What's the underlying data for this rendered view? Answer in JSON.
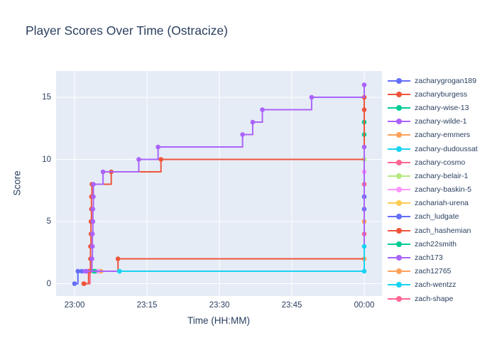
{
  "chart_data": {
    "type": "line",
    "line_shape": "hv",
    "mode": "lines+markers",
    "title": "Player Scores Over Time (Ostracize)",
    "xlabel": "Time (HH:MM)",
    "ylabel": "Score",
    "x_tick_labels": [
      "23:00",
      "23:15",
      "23:30",
      "23:45",
      "00:00"
    ],
    "x_tick_minutes": [
      0,
      15,
      30,
      45,
      60
    ],
    "y_ticks": [
      0,
      5,
      10,
      15
    ],
    "ylim": [
      -1.2,
      17.1
    ],
    "xlim_minutes": [
      -3.8,
      63.6
    ],
    "grid": "on",
    "legend_position": "right",
    "plot_bg_color": "#E5ECF6",
    "grid_color": "#FFFFFF",
    "text_color": "#2A3F5F",
    "series": [
      {
        "name": "zacharygrogan189",
        "color": "#636EFA",
        "final_score": 7,
        "points": [
          [
            0,
            0
          ],
          [
            0.7,
            1
          ],
          [
            60,
            7
          ]
        ]
      },
      {
        "name": "zacharyburgess",
        "color": "#EF553B",
        "final_score": 15,
        "points": [
          [
            1.9,
            0
          ],
          [
            2.9,
            1
          ],
          [
            3.3,
            2
          ],
          [
            3.3,
            3
          ],
          [
            3.4,
            4
          ],
          [
            3.4,
            5
          ],
          [
            3.5,
            6
          ],
          [
            3.5,
            7
          ],
          [
            3.6,
            8
          ],
          [
            7.6,
            9
          ],
          [
            17.9,
            10
          ],
          [
            60,
            15
          ]
        ]
      },
      {
        "name": "zachary-wise-13",
        "color": "#00CC96",
        "final_score": 12,
        "points": [
          [
            4.2,
            1
          ],
          [
            60,
            12
          ]
        ]
      },
      {
        "name": "zachary-wilde-1",
        "color": "#AB63FA",
        "final_score": 11,
        "points": [
          [
            2.5,
            1
          ],
          [
            60,
            11
          ]
        ]
      },
      {
        "name": "zachary-emmers",
        "color": "#FFA15A",
        "final_score": 5,
        "points": [
          [
            4.9,
            1
          ],
          [
            60,
            5
          ]
        ]
      },
      {
        "name": "zachary-dudoussat",
        "color": "#19D3F3",
        "final_score": 3,
        "points": [
          [
            9.3,
            1
          ],
          [
            60,
            3
          ]
        ]
      },
      {
        "name": "zachary-cosmo",
        "color": "#FF6692",
        "final_score": 8,
        "points": [
          [
            3,
            1
          ],
          [
            60,
            8
          ]
        ]
      },
      {
        "name": "zachary-belair-1",
        "color": "#B6E880",
        "final_score": 10,
        "points": [
          [
            4.5,
            1
          ],
          [
            60,
            10
          ]
        ]
      },
      {
        "name": "zachary-baskin-5",
        "color": "#FF97FF",
        "final_score": 9,
        "points": [
          [
            4.8,
            1
          ],
          [
            60,
            9
          ]
        ]
      },
      {
        "name": "zachariah-urena",
        "color": "#FECB52",
        "final_score": 0,
        "points": [
          [
            0,
            0
          ]
        ]
      },
      {
        "name": "zach_ludgate",
        "color": "#636EFA",
        "final_score": 6,
        "points": [
          [
            1.5,
            1
          ],
          [
            60,
            6
          ]
        ]
      },
      {
        "name": "zach_hashemian",
        "color": "#EF553B",
        "final_score": 14,
        "points": [
          [
            3,
            1
          ],
          [
            9,
            2
          ],
          [
            60,
            14
          ]
        ]
      },
      {
        "name": "zach22smith",
        "color": "#00CC96",
        "final_score": 13,
        "points": [
          [
            4,
            1
          ],
          [
            60,
            13
          ]
        ]
      },
      {
        "name": "zach173",
        "color": "#AB63FA",
        "final_score": 16,
        "points": [
          [
            2.2,
            1
          ],
          [
            3.6,
            2
          ],
          [
            3.7,
            3
          ],
          [
            3.7,
            4
          ],
          [
            3.8,
            5
          ],
          [
            3.8,
            6
          ],
          [
            3.9,
            7
          ],
          [
            3.9,
            8
          ],
          [
            5.9,
            9
          ],
          [
            13.3,
            10
          ],
          [
            17.3,
            11
          ],
          [
            34.8,
            12
          ],
          [
            36.9,
            13
          ],
          [
            38.9,
            14
          ],
          [
            49.1,
            15
          ],
          [
            60,
            16
          ]
        ]
      },
      {
        "name": "zach12765",
        "color": "#FFA15A",
        "final_score": 2,
        "points": [
          [
            5.5,
            1
          ],
          [
            60,
            2
          ]
        ]
      },
      {
        "name": "zach-wentzz",
        "color": "#19D3F3",
        "final_score": 1,
        "points": [
          [
            9.3,
            1
          ],
          [
            60,
            1
          ]
        ]
      },
      {
        "name": "zach-shape",
        "color": "#FF6692",
        "final_score": 4,
        "points": [
          [
            2,
            0
          ],
          [
            3.2,
            1
          ],
          [
            60,
            4
          ]
        ]
      }
    ],
    "draw_order": [
      "zachariah-urena",
      "zacharygrogan189",
      "zach_ludgate",
      "zachary-emmers",
      "zach12765",
      "zachary-belair-1",
      "zachary-baskin-5",
      "zachary-cosmo",
      "zach-shape",
      "zachary-wise-13",
      "zach22smith",
      "zach_hashemian",
      "zacharyburgess",
      "zachary-wilde-1",
      "zachary-dudoussat",
      "zach-wentzz",
      "zach173"
    ]
  }
}
